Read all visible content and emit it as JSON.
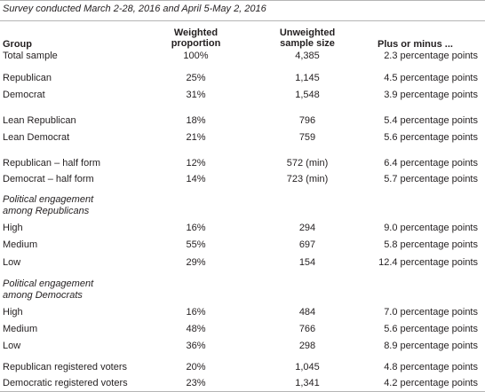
{
  "caption": "Survey conducted March 2-28, 2016 and April 5-May 2, 2016",
  "headers": {
    "group": "Group",
    "weighted_line1": "Weighted",
    "weighted_line2": "proportion",
    "sample_line1": "Unweighted",
    "sample_line2": "sample size",
    "moe": "Plus or minus ..."
  },
  "rows": [
    {
      "group": "Total sample",
      "weighted": "100%",
      "sample": "4,385",
      "moe": "2.3 percentage points"
    },
    {
      "group": "Republican",
      "weighted": "25%",
      "sample": "1,145",
      "moe": "4.5 percentage points"
    },
    {
      "group": "Democrat",
      "weighted": "31%",
      "sample": "1,548",
      "moe": "3.9 percentage points"
    },
    {
      "group": "Lean Republican",
      "weighted": "18%",
      "sample": "796",
      "moe": "5.4 percentage points"
    },
    {
      "group": "Lean Democrat",
      "weighted": "21%",
      "sample": "759",
      "moe": "5.6 percentage points"
    },
    {
      "group": "Republican – half form",
      "weighted": "12%",
      "sample": "572 (min)",
      "moe": "6.4 percentage points"
    },
    {
      "group": "Democrat – half form",
      "weighted": "14%",
      "sample": "723 (min)",
      "moe": "5.7 percentage points"
    },
    {
      "group": "High",
      "weighted": "16%",
      "sample": "294",
      "moe": "9.0 percentage points"
    },
    {
      "group": "Medium",
      "weighted": "55%",
      "sample": "697",
      "moe": "5.8 percentage points"
    },
    {
      "group": "Low",
      "weighted": "29%",
      "sample": "154",
      "moe": "12.4 percentage points"
    },
    {
      "group": "High",
      "weighted": "16%",
      "sample": "484",
      "moe": "7.0 percentage points"
    },
    {
      "group": "Medium",
      "weighted": "48%",
      "sample": "766",
      "moe": "5.6 percentage points"
    },
    {
      "group": "Low",
      "weighted": "36%",
      "sample": "298",
      "moe": "8.9 percentage points"
    },
    {
      "group": "Republican registered voters",
      "weighted": "20%",
      "sample": "1,045",
      "moe": "4.8 percentage points"
    },
    {
      "group": "Democratic registered voters",
      "weighted": "23%",
      "sample": "1,341",
      "moe": "4.2 percentage points"
    }
  ],
  "sections": {
    "republicans_line1": "Political engagement",
    "republicans_line2": "among Republicans",
    "democrats_line1": "Political engagement",
    "democrats_line2": "among Democrats"
  }
}
